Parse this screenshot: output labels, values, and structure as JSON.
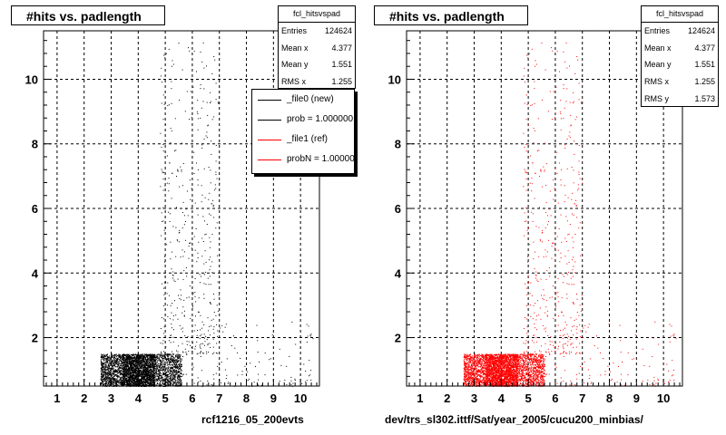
{
  "chart_data": [
    {
      "type": "scatter",
      "title": "#hits vs. padlength",
      "xlabel": "rcf1216_05_200evts",
      "ylabel": "",
      "xlim": [
        0.5,
        10.7
      ],
      "ylim": [
        0.5,
        11.5
      ],
      "xticks": [
        1,
        2,
        3,
        4,
        5,
        6,
        7,
        8,
        9,
        10
      ],
      "yticks": [
        2,
        4,
        6,
        8,
        10
      ],
      "grid": true,
      "marker_color": "#000000",
      "stats": {
        "name": "fcl_hitsvspad",
        "rows": [
          {
            "label": "Entries",
            "value": "124624"
          },
          {
            "label": "Mean x",
            "value": "4.377"
          },
          {
            "label": "Mean y",
            "value": "1.551"
          },
          {
            "label": "RMS x",
            "value": "1.255"
          }
        ]
      },
      "legend": {
        "placement": "top-right",
        "entries": [
          {
            "label": "_file0 (new)",
            "color": "#000000"
          },
          {
            "label": "prob = 1.000000",
            "color": "#000000"
          },
          {
            "label": "_file1 (ref)",
            "color": "#ff0000"
          },
          {
            "label": "probN = 1.000000",
            "color": "#ff0000"
          }
        ]
      },
      "density_regions": [
        {
          "x": [
            2.6,
            3.4
          ],
          "y": [
            0.5,
            1.5
          ],
          "density": "high"
        },
        {
          "x": [
            3.4,
            4.6
          ],
          "y": [
            0.5,
            1.5
          ],
          "density": "very high"
        },
        {
          "x": [
            4.6,
            5.6
          ],
          "y": [
            0.5,
            1.5
          ],
          "density": "high"
        },
        {
          "x": [
            5.6,
            10.5
          ],
          "y": [
            0.5,
            2.5
          ],
          "density": "low"
        },
        {
          "x": [
            4.8,
            7.0
          ],
          "y": [
            1.5,
            11.2
          ],
          "density": "sparse"
        }
      ]
    },
    {
      "type": "scatter",
      "title": "#hits vs. padlength",
      "xlabel": "dev/trs_sl302.ittf/Sat/year_2005/cucu200_minbias/",
      "ylabel": "",
      "xlim": [
        0.5,
        10.7
      ],
      "ylim": [
        0.5,
        11.5
      ],
      "xticks": [
        1,
        2,
        3,
        4,
        5,
        6,
        7,
        8,
        9,
        10
      ],
      "yticks": [
        2,
        4,
        6,
        8,
        10
      ],
      "grid": true,
      "marker_color": "#ff0000",
      "stats": {
        "name": "fcl_hitsvspad",
        "rows": [
          {
            "label": "Entries",
            "value": "124624"
          },
          {
            "label": "Mean x",
            "value": "4.377"
          },
          {
            "label": "Mean y",
            "value": "1.551"
          },
          {
            "label": "RMS x",
            "value": "1.255"
          },
          {
            "label": "RMS y",
            "value": "1.573"
          }
        ]
      },
      "density_regions": [
        {
          "x": [
            2.6,
            3.4
          ],
          "y": [
            0.5,
            1.5
          ],
          "density": "high"
        },
        {
          "x": [
            3.4,
            4.6
          ],
          "y": [
            0.5,
            1.5
          ],
          "density": "very high"
        },
        {
          "x": [
            4.6,
            5.6
          ],
          "y": [
            0.5,
            1.5
          ],
          "density": "high"
        },
        {
          "x": [
            5.6,
            10.5
          ],
          "y": [
            0.5,
            2.5
          ],
          "density": "low"
        },
        {
          "x": [
            4.8,
            7.0
          ],
          "y": [
            1.5,
            11.2
          ],
          "density": "sparse"
        }
      ]
    }
  ]
}
